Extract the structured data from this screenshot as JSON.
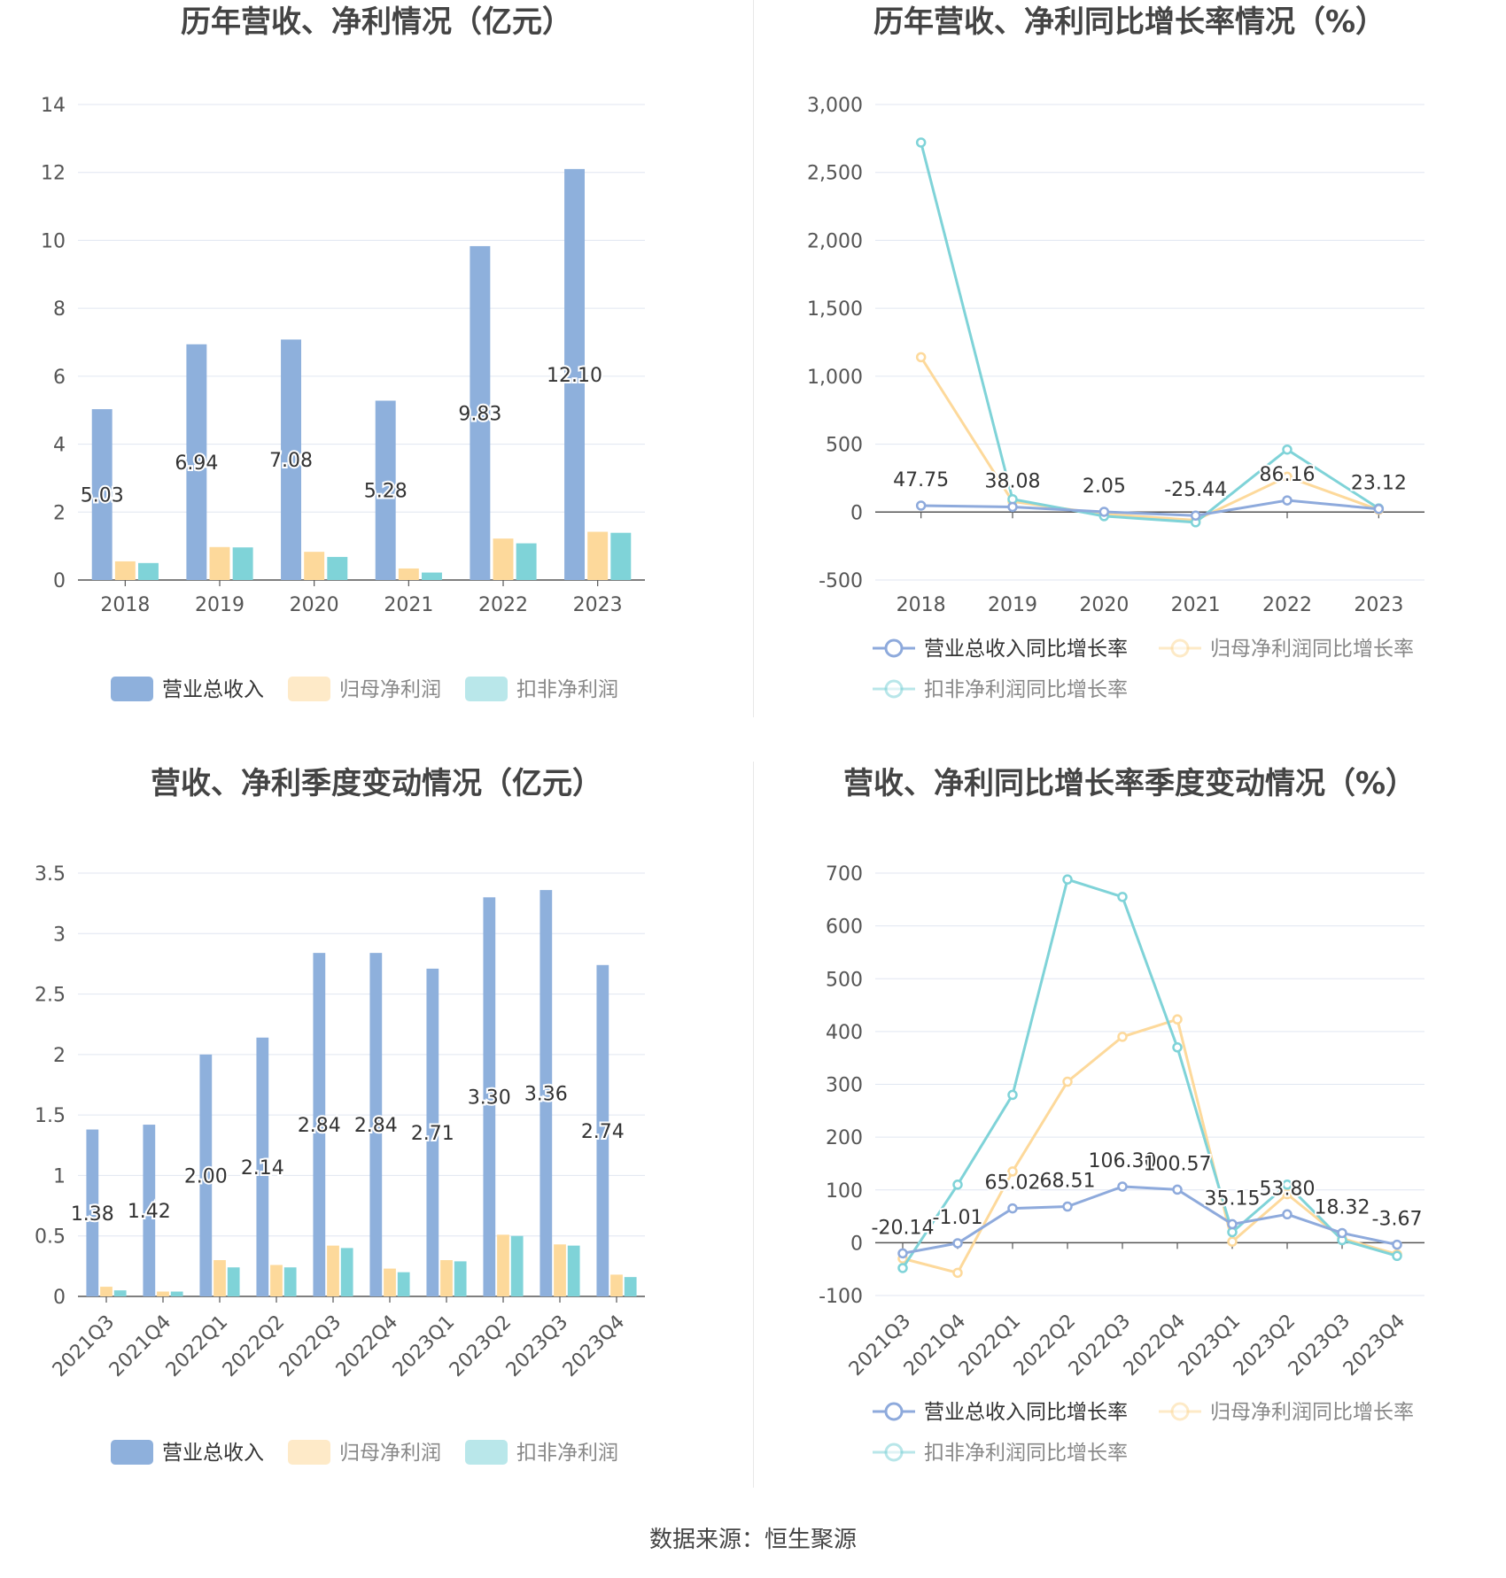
{
  "footer": {
    "source": "数据来源：恒生聚源"
  },
  "chart_data": [
    {
      "type": "bar",
      "title": "历年营收、净利情况（亿元）",
      "categories": [
        "2018",
        "2019",
        "2020",
        "2021",
        "2022",
        "2023"
      ],
      "ylim": [
        0,
        14
      ],
      "yticks": [
        0,
        2,
        4,
        6,
        8,
        10,
        12,
        14
      ],
      "ytick_labels": [
        "0",
        "2",
        "4",
        "6",
        "8",
        "10",
        "12",
        "14"
      ],
      "grid": true,
      "legend_position": "bottom",
      "series": [
        {
          "name": "营业总收入",
          "color": "#8eb0dc",
          "values": [
            5.03,
            6.94,
            7.08,
            5.28,
            9.83,
            12.1
          ],
          "labels": [
            "5.03",
            "6.94",
            "7.08",
            "5.28",
            "9.83",
            "12.10"
          ]
        },
        {
          "name": "归母净利润",
          "color": "#fdd99b",
          "values": [
            0.55,
            0.97,
            0.83,
            0.34,
            1.22,
            1.42
          ]
        },
        {
          "name": "扣非净利润",
          "color": "#7fd3d8",
          "values": [
            0.5,
            0.96,
            0.68,
            0.22,
            1.08,
            1.39
          ]
        }
      ]
    },
    {
      "type": "line",
      "title": "历年营收、净利同比增长率情况（%）",
      "categories": [
        "2018",
        "2019",
        "2020",
        "2021",
        "2022",
        "2023"
      ],
      "ylim": [
        -500,
        3000
      ],
      "yticks": [
        -500,
        0,
        500,
        1000,
        1500,
        2000,
        2500,
        3000
      ],
      "ytick_labels": [
        "-500",
        "0",
        "500",
        "1,000",
        "1,500",
        "2,000",
        "2,500",
        "3,000"
      ],
      "grid": true,
      "legend_position": "bottom",
      "series": [
        {
          "name": "营业总收入同比增长率",
          "color": "#8eaadc",
          "values": [
            47.75,
            38.08,
            2.05,
            -25.44,
            86.16,
            23.12
          ],
          "labels": [
            "47.75",
            "38.08",
            "2.05",
            "-25.44",
            "86.16",
            "23.12"
          ]
        },
        {
          "name": "归母净利润同比增长率",
          "color": "#fdd99b",
          "values": [
            1140,
            78,
            -15,
            -60,
            260,
            17
          ]
        },
        {
          "name": "扣非净利润同比增长率",
          "color": "#7fd3d8",
          "values": [
            2720,
            95,
            -30,
            -75,
            460,
            27
          ]
        }
      ]
    },
    {
      "type": "bar",
      "title": "营收、净利季度变动情况（亿元）",
      "categories": [
        "2021Q3",
        "2021Q4",
        "2022Q1",
        "2022Q2",
        "2022Q3",
        "2022Q4",
        "2023Q1",
        "2023Q2",
        "2023Q3",
        "2023Q4"
      ],
      "ylim": [
        0,
        3.5
      ],
      "yticks": [
        0,
        0.5,
        1,
        1.5,
        2,
        2.5,
        3,
        3.5
      ],
      "ytick_labels": [
        "0",
        "0.5",
        "1",
        "1.5",
        "2",
        "2.5",
        "3",
        "3.5"
      ],
      "grid": true,
      "legend_position": "bottom",
      "series": [
        {
          "name": "营业总收入",
          "color": "#8eb0dc",
          "values": [
            1.38,
            1.42,
            2.0,
            2.14,
            2.84,
            2.84,
            2.71,
            3.3,
            3.36,
            2.74
          ],
          "labels": [
            "1.38",
            "1.42",
            "2.00",
            "2.14",
            "2.84",
            "2.84",
            "2.71",
            "3.30",
            "3.36",
            "2.74"
          ]
        },
        {
          "name": "归母净利润",
          "color": "#fdd99b",
          "values": [
            0.08,
            0.04,
            0.3,
            0.26,
            0.42,
            0.23,
            0.3,
            0.51,
            0.43,
            0.18
          ]
        },
        {
          "name": "扣非净利润",
          "color": "#7fd3d8",
          "values": [
            0.05,
            0.04,
            0.24,
            0.24,
            0.4,
            0.2,
            0.29,
            0.5,
            0.42,
            0.16
          ]
        }
      ]
    },
    {
      "type": "line",
      "title": "营收、净利同比增长率季度变动情况（%）",
      "categories": [
        "2021Q3",
        "2021Q4",
        "2022Q1",
        "2022Q2",
        "2022Q3",
        "2022Q4",
        "2023Q1",
        "2023Q2",
        "2023Q3",
        "2023Q4"
      ],
      "ylim": [
        -100,
        700
      ],
      "yticks": [
        -100,
        0,
        100,
        200,
        300,
        400,
        500,
        600,
        700
      ],
      "ytick_labels": [
        "-100",
        "0",
        "100",
        "200",
        "300",
        "400",
        "500",
        "600",
        "700"
      ],
      "grid": true,
      "legend_position": "bottom",
      "series": [
        {
          "name": "营业总收入同比增长率",
          "color": "#8eaadc",
          "values": [
            -20.14,
            -1.01,
            65.02,
            68.51,
            106.3,
            100.57,
            35.15,
            53.8,
            18.32,
            -3.67
          ],
          "labels": [
            "-20.14",
            "-1.01",
            "65.02",
            "68.51",
            "106.30",
            "100.57",
            "35.15",
            "53.80",
            "18.32",
            "-3.67"
          ]
        },
        {
          "name": "归母净利润同比增长率",
          "color": "#fdd99b",
          "values": [
            -30,
            -57,
            135,
            305,
            390,
            423,
            2,
            92,
            8,
            -22
          ]
        },
        {
          "name": "扣非净利润同比增长率",
          "color": "#7fd3d8",
          "values": [
            -48,
            110,
            280,
            688,
            655,
            370,
            20,
            110,
            5,
            -25
          ]
        }
      ]
    }
  ]
}
